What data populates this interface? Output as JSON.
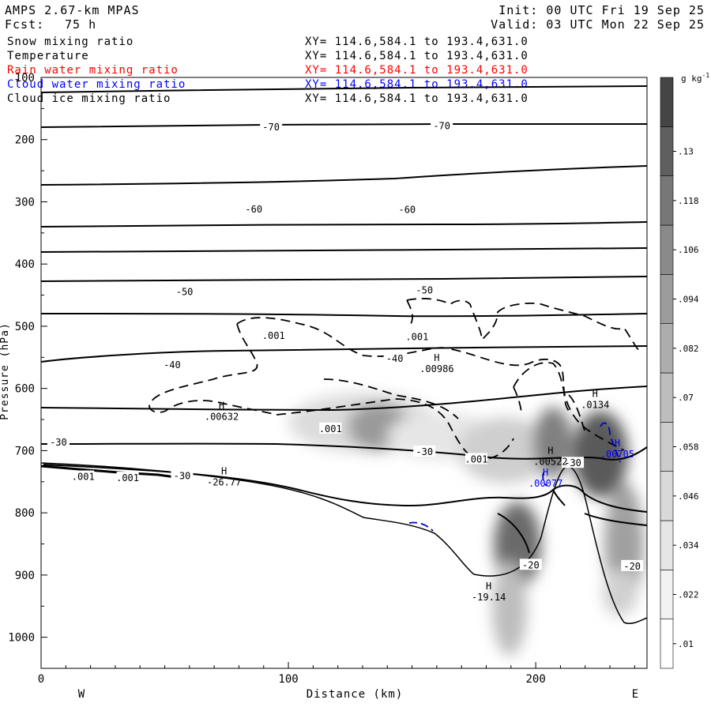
{
  "header": {
    "model": "AMPS 2.67-km MPAS",
    "init": "Init: 00 UTC Fri 19 Sep 25",
    "fcst_label": "Fcst:",
    "fcst_value": "75 h",
    "valid": "Valid: 03 UTC Mon 22 Sep 25"
  },
  "fields": [
    {
      "name": "Snow mixing ratio",
      "xy": "XY= 114.6,584.1 to 193.4,631.0",
      "color": "#000000"
    },
    {
      "name": "Temperature",
      "xy": "XY= 114.6,584.1 to 193.4,631.0",
      "color": "#000000"
    },
    {
      "name": "Rain water mixing ratio",
      "xy": "XY= 114.6,584.1 to 193.4,631.0",
      "color": "#ff0000"
    },
    {
      "name": "Cloud water mixing ratio",
      "xy": "XY= 114.6,584.1 to 193.4,631.0",
      "color": "#0000ff"
    },
    {
      "name": "Cloud ice mixing ratio",
      "xy": "XY= 114.6,584.1 to 193.4,631.0",
      "color": "#000000"
    }
  ],
  "chart_data": {
    "type": "cross-section",
    "xlabel": "Distance (km)",
    "ylabel": "Pressure (hPa)",
    "xlim": [
      0,
      245
    ],
    "ylim": [
      1050,
      100
    ],
    "x_ticks": [
      0,
      100,
      200
    ],
    "y_ticks": [
      100,
      200,
      300,
      400,
      500,
      600,
      700,
      800,
      900,
      1000
    ],
    "left_end": "W",
    "right_end": "E",
    "colorbar": {
      "unit": "g kg",
      "unit_sup": "-1",
      "levels": [
        ".01",
        ".022",
        ".034",
        ".046",
        ".058",
        ".07",
        ".082",
        ".094",
        ".106",
        ".118",
        ".13"
      ],
      "shades": [
        "#ffffff",
        "#f2f2f2",
        "#e6e6e6",
        "#d9d9d9",
        "#cccccc",
        "#bdbdbd",
        "#adadad",
        "#9c9c9c",
        "#8a8a8a",
        "#777777",
        "#5f5f5f",
        "#454545"
      ]
    },
    "temperature_labels": [
      {
        "x": 93,
        "p": 180,
        "text": "-70"
      },
      {
        "x": 162,
        "p": 178,
        "text": "-70"
      },
      {
        "x": 86,
        "p": 312,
        "text": "-60"
      },
      {
        "x": 148,
        "p": 313,
        "text": "-60"
      },
      {
        "x": 58,
        "p": 445,
        "text": "-50"
      },
      {
        "x": 155,
        "p": 442,
        "text": "-50"
      },
      {
        "x": 53,
        "p": 562,
        "text": "-40"
      },
      {
        "x": 143,
        "p": 552,
        "text": "-40"
      },
      {
        "x": 7,
        "p": 687,
        "text": "-30"
      },
      {
        "x": 155,
        "p": 702,
        "text": "-30"
      },
      {
        "x": 57,
        "p": 741,
        "text": "-30"
      },
      {
        "x": 215,
        "p": 720,
        "text": "-30"
      },
      {
        "x": 198,
        "p": 884,
        "text": "-20"
      },
      {
        "x": 239,
        "p": 886,
        "text": "-20"
      }
    ],
    "ice_labels": [
      {
        "x": 94,
        "p": 515,
        "text": ".001"
      },
      {
        "x": 152,
        "p": 517,
        "text": ".001"
      },
      {
        "x": 117,
        "p": 665,
        "text": ".001"
      },
      {
        "x": 176,
        "p": 714,
        "text": ".001"
      },
      {
        "x": 35,
        "p": 744,
        "text": ".001"
      },
      {
        "x": 17,
        "p": 742,
        "text": ".001"
      }
    ],
    "markers": [
      {
        "x": 160,
        "p": 556,
        "text": "H",
        "value": ".00986",
        "color": "#000000"
      },
      {
        "x": 73,
        "p": 633,
        "text": "H",
        "value": ".00632",
        "color": "#000000"
      },
      {
        "x": 224,
        "p": 614,
        "text": "H",
        "value": ".0134",
        "color": "#000000"
      },
      {
        "x": 206,
        "p": 705,
        "text": "H",
        "value": ".00522",
        "color": "#000000"
      },
      {
        "x": 74,
        "p": 738,
        "text": "H",
        "value": "-26.77",
        "color": "#000000"
      },
      {
        "x": 181,
        "p": 923,
        "text": "H",
        "value": "-19.14",
        "color": "#000000"
      },
      {
        "x": 204,
        "p": 740,
        "text": "H",
        "value": ".00077",
        "color": "#0000ff"
      },
      {
        "x": 233,
        "p": 693,
        "text": "H",
        "value": ".00705",
        "color": "#0000ff"
      }
    ]
  }
}
